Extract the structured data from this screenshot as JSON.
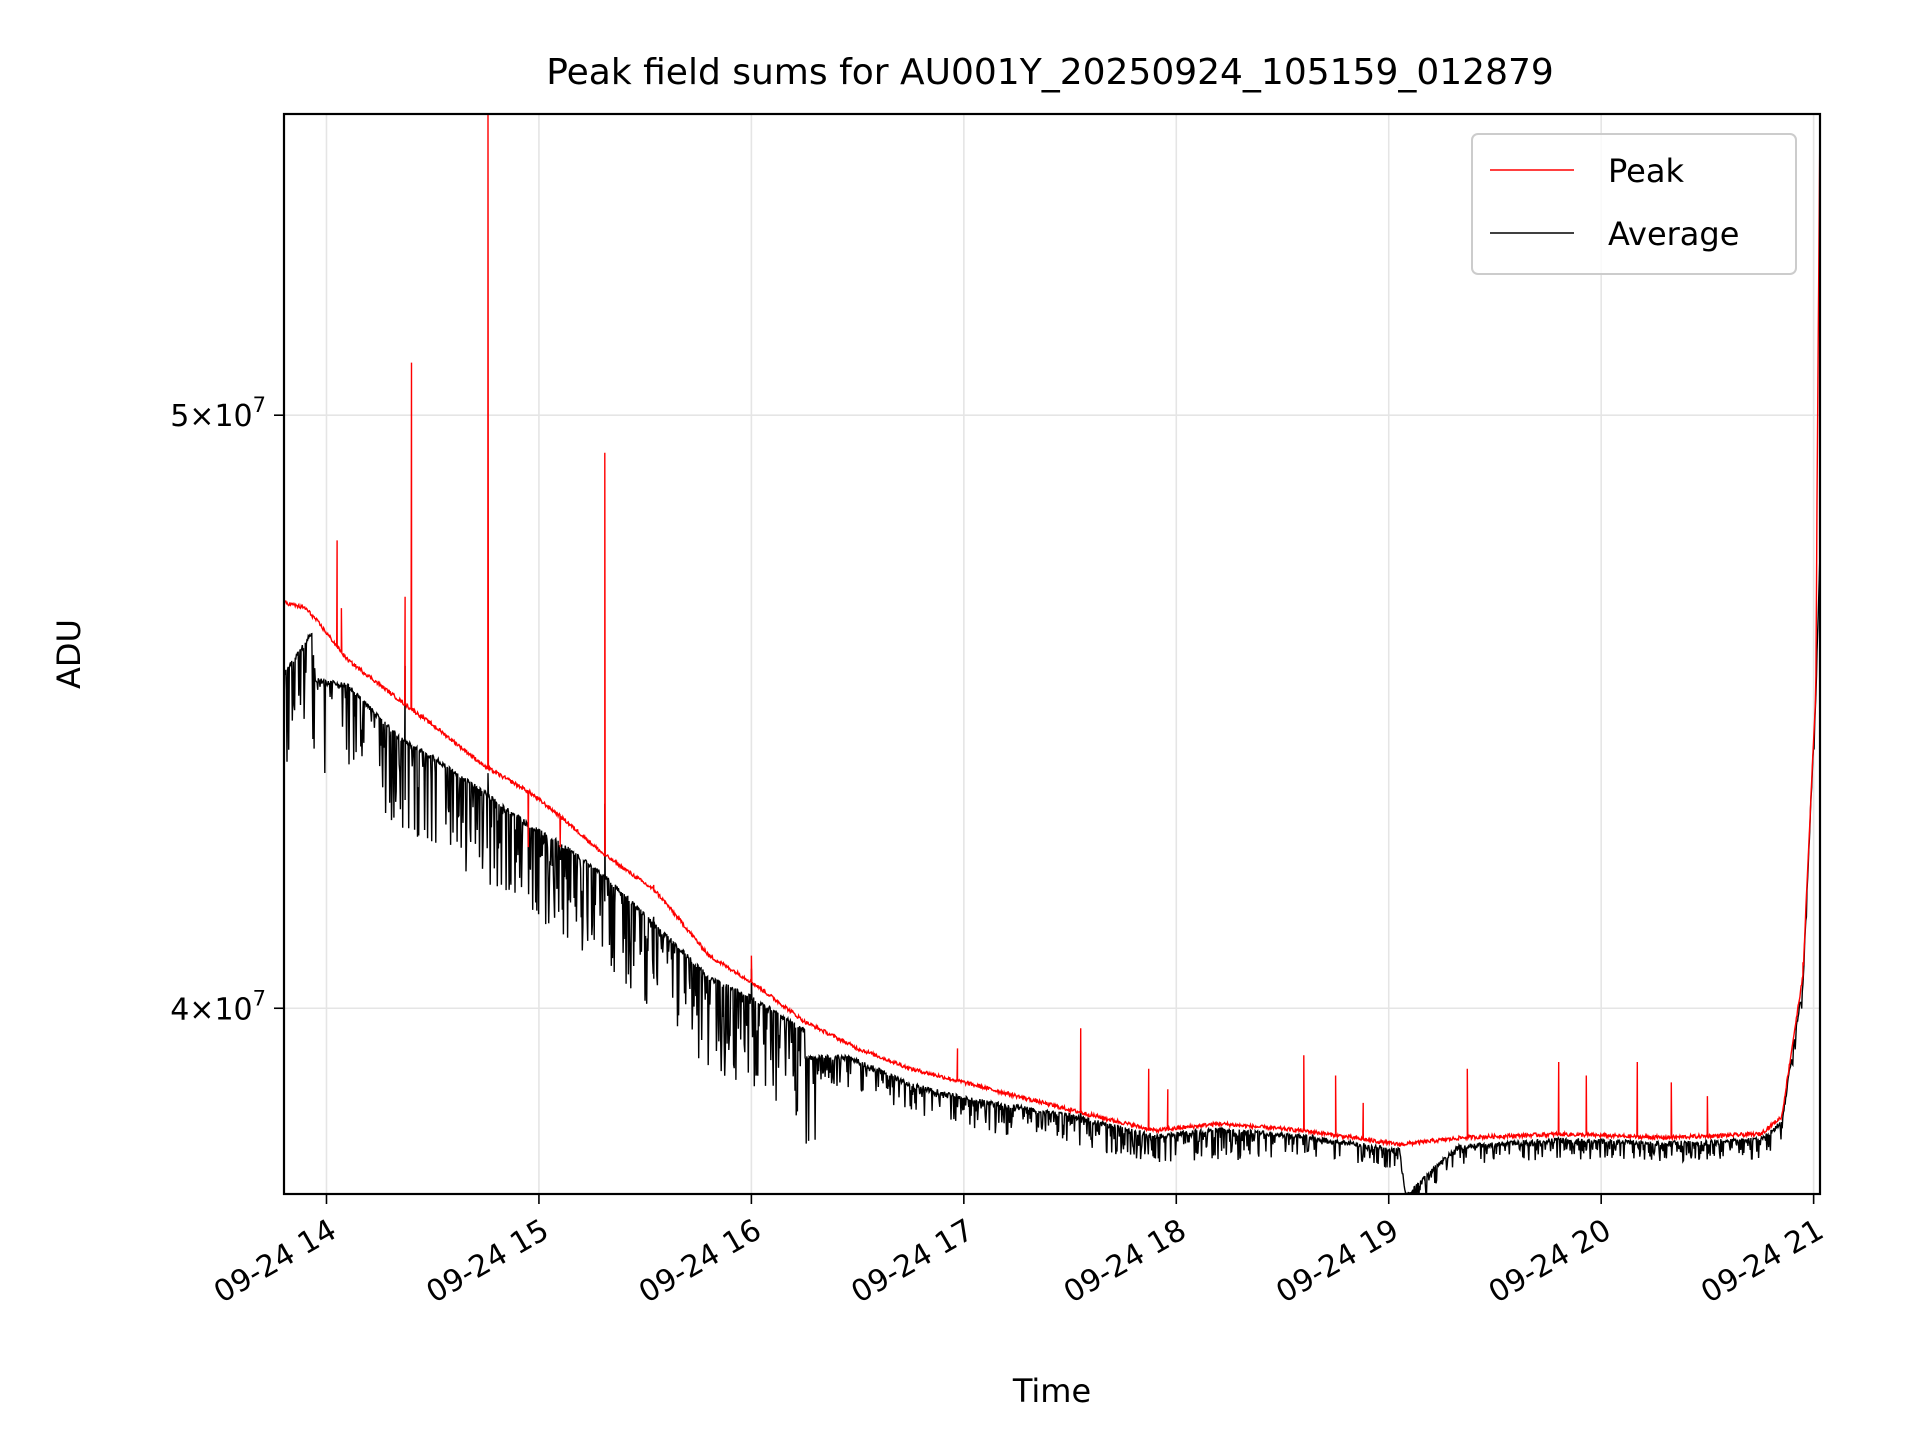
{
  "chart_data": {
    "type": "line",
    "title": "Peak field sums for AU001Y_20250924_105159_012879",
    "xlabel": "Time",
    "ylabel": "ADU",
    "yscale": "log",
    "xlim_hours": [
      13.8,
      21.03
    ],
    "ylim": [
      37300000,
      56000000
    ],
    "x_ticks": [
      {
        "hour": 14,
        "label": "09-24 14"
      },
      {
        "hour": 15,
        "label": "09-24 15"
      },
      {
        "hour": 16,
        "label": "09-24 16"
      },
      {
        "hour": 17,
        "label": "09-24 17"
      },
      {
        "hour": 18,
        "label": "09-24 18"
      },
      {
        "hour": 19,
        "label": "09-24 19"
      },
      {
        "hour": 20,
        "label": "09-24 20"
      },
      {
        "hour": 21,
        "label": "09-24 21"
      }
    ],
    "y_ticks": [
      {
        "value": 40000000,
        "mantissa": "4",
        "exponent": "7"
      },
      {
        "value": 50000000,
        "mantissa": "5",
        "exponent": "7"
      }
    ],
    "grid": true,
    "legend_position": "upper-right",
    "series": [
      {
        "name": "Peak",
        "color": "#ff0000",
        "baseline": [
          [
            13.8,
            46600000
          ],
          [
            13.9,
            46500000
          ],
          [
            13.95,
            46300000
          ],
          [
            14.1,
            45600000
          ],
          [
            14.35,
            44900000
          ],
          [
            14.5,
            44500000
          ],
          [
            14.75,
            43800000
          ],
          [
            14.95,
            43400000
          ],
          [
            15.1,
            43000000
          ],
          [
            15.3,
            42400000
          ],
          [
            15.55,
            41800000
          ],
          [
            15.8,
            40800000
          ],
          [
            16.0,
            40400000
          ],
          [
            16.25,
            39800000
          ],
          [
            16.5,
            39400000
          ],
          [
            16.75,
            39100000
          ],
          [
            17.0,
            38900000
          ],
          [
            17.5,
            38500000
          ],
          [
            17.9,
            38200000
          ],
          [
            18.2,
            38300000
          ],
          [
            18.6,
            38200000
          ],
          [
            19.05,
            38000000
          ],
          [
            19.35,
            38100000
          ],
          [
            19.8,
            38150000
          ],
          [
            20.3,
            38100000
          ],
          [
            20.75,
            38150000
          ],
          [
            20.85,
            38400000
          ],
          [
            20.95,
            40500000
          ],
          [
            21.01,
            45000000
          ],
          [
            21.03,
            56000000
          ]
        ],
        "spikes": [
          [
            14.05,
            47700000
          ],
          [
            14.07,
            46500000
          ],
          [
            14.37,
            46700000
          ],
          [
            14.4,
            51000000
          ],
          [
            14.76,
            56000000
          ],
          [
            14.95,
            42500000
          ],
          [
            15.1,
            42500000
          ],
          [
            15.31,
            49300000
          ],
          [
            15.54,
            41900000
          ],
          [
            16.0,
            40800000
          ],
          [
            16.97,
            39400000
          ],
          [
            17.55,
            39700000
          ],
          [
            17.87,
            39100000
          ],
          [
            17.96,
            38800000
          ],
          [
            18.6,
            39300000
          ],
          [
            18.75,
            39000000
          ],
          [
            18.88,
            38600000
          ],
          [
            19.37,
            39100000
          ],
          [
            19.8,
            39200000
          ],
          [
            19.93,
            39000000
          ],
          [
            20.17,
            39200000
          ],
          [
            20.33,
            38900000
          ],
          [
            20.5,
            38700000
          ],
          [
            20.95,
            40700000
          ]
        ]
      },
      {
        "name": "Average",
        "color": "#000000",
        "baseline": [
          [
            13.8,
            45400000
          ],
          [
            13.93,
            46100000
          ],
          [
            13.95,
            45300000
          ],
          [
            14.1,
            45200000
          ],
          [
            14.35,
            44300000
          ],
          [
            14.5,
            44000000
          ],
          [
            14.75,
            43400000
          ],
          [
            14.95,
            42900000
          ],
          [
            15.1,
            42600000
          ],
          [
            15.3,
            42100000
          ],
          [
            15.55,
            41300000
          ],
          [
            15.8,
            40500000
          ],
          [
            16.0,
            40200000
          ],
          [
            16.25,
            39700000
          ],
          [
            16.25,
            39300000
          ],
          [
            16.45,
            39300000
          ],
          [
            16.5,
            39250000
          ],
          [
            16.75,
            38900000
          ],
          [
            17.0,
            38700000
          ],
          [
            17.5,
            38450000
          ],
          [
            17.9,
            38150000
          ],
          [
            18.2,
            38250000
          ],
          [
            18.6,
            38150000
          ],
          [
            19.05,
            37950000
          ],
          [
            19.08,
            37300000
          ],
          [
            19.32,
            38000000
          ],
          [
            19.8,
            38100000
          ],
          [
            20.3,
            38050000
          ],
          [
            20.75,
            38100000
          ],
          [
            20.85,
            38350000
          ],
          [
            20.95,
            40400000
          ],
          [
            21.01,
            45000000
          ],
          [
            21.03,
            47500000
          ]
        ],
        "spikes": [
          [
            14.37,
            45500000
          ],
          [
            14.76,
            43700000
          ],
          [
            15.31,
            43200000
          ],
          [
            15.54,
            41400000
          ],
          [
            16.0,
            40600000
          ],
          [
            17.55,
            38800000
          ]
        ]
      }
    ]
  }
}
